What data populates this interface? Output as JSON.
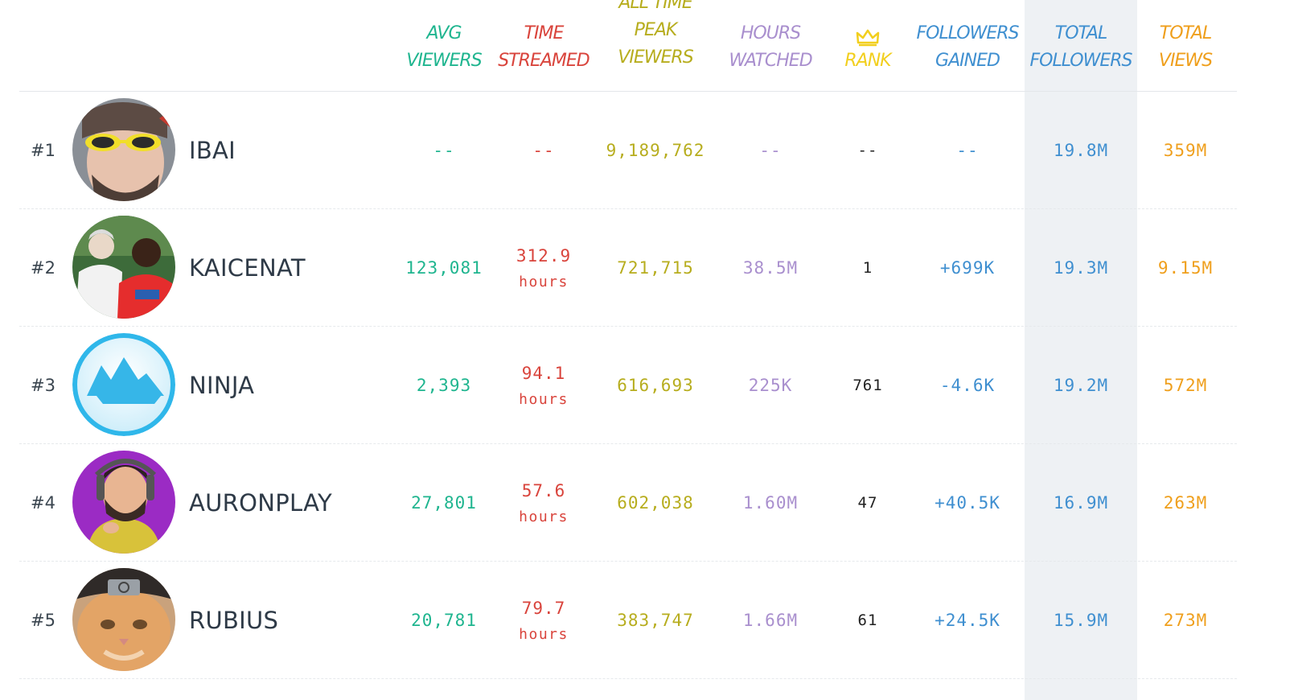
{
  "headers": {
    "avg_viewers": [
      "AVG",
      "VIEWERS"
    ],
    "time_streamed": [
      "TIME",
      "STREAMED"
    ],
    "peak_viewers": [
      "ALL TIME",
      "PEAK",
      "VIEWERS"
    ],
    "hours_watched": [
      "HOURS",
      "WATCHED"
    ],
    "rank": "RANK",
    "followers_gained": [
      "FOLLOWERS",
      "GAINED"
    ],
    "total_followers": [
      "TOTAL",
      "FOLLOWERS"
    ],
    "total_views": [
      "TOTAL",
      "VIEWS"
    ]
  },
  "colors": {
    "avg": "#1fb58f",
    "time": "#d9443c",
    "peak": "#b7ad1e",
    "hours": "#a98fce",
    "rank": "#f2cf1e",
    "followers": "#3f8fd0",
    "views": "#ef9f1c"
  },
  "icons": {
    "rank_header": "crown-icon"
  },
  "rows": [
    {
      "rank": "#1",
      "name": "IBAI",
      "avg": "--",
      "time": "--",
      "time_unit": "",
      "peak": "9,189,762",
      "hours": "--",
      "rank_pos": "--",
      "gained": "--",
      "total_followers": "19.8M",
      "total_views": "359M"
    },
    {
      "rank": "#2",
      "name": "KAICENAT",
      "avg": "123,081",
      "time": "312.9",
      "time_unit": "hours",
      "peak": "721,715",
      "hours": "38.5M",
      "rank_pos": "1",
      "gained": "+699K",
      "total_followers": "19.3M",
      "total_views": "9.15M"
    },
    {
      "rank": "#3",
      "name": "NINJA",
      "avg": "2,393",
      "time": "94.1",
      "time_unit": "hours",
      "peak": "616,693",
      "hours": "225K",
      "rank_pos": "761",
      "gained": "-4.6K",
      "total_followers": "19.2M",
      "total_views": "572M"
    },
    {
      "rank": "#4",
      "name": "AURONPLAY",
      "avg": "27,801",
      "time": "57.6",
      "time_unit": "hours",
      "peak": "602,038",
      "hours": "1.60M",
      "rank_pos": "47",
      "gained": "+40.5K",
      "total_followers": "16.9M",
      "total_views": "263M"
    },
    {
      "rank": "#5",
      "name": "RUBIUS",
      "avg": "20,781",
      "time": "79.7",
      "time_unit": "hours",
      "peak": "383,747",
      "hours": "1.66M",
      "rank_pos": "61",
      "gained": "+24.5K",
      "total_followers": "15.9M",
      "total_views": "273M"
    }
  ]
}
